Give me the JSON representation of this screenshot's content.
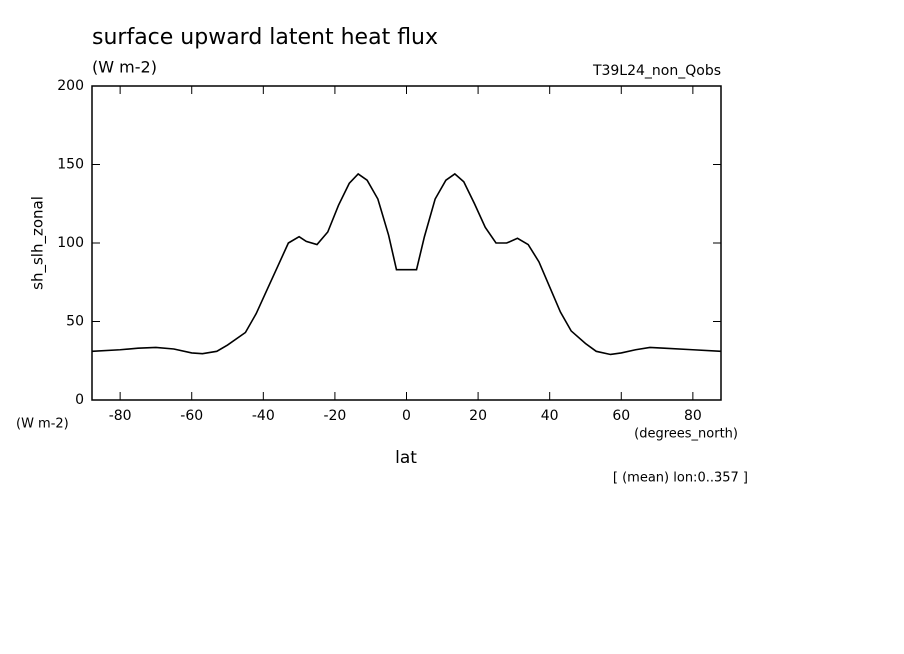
{
  "chart_data": {
    "type": "line",
    "title": "surface upward latent heat flux",
    "subtitle": "(W m-2)",
    "experiment": "T39L24_non_Qobs",
    "y_label": "sh_slh_zonal",
    "y_unit_label": "(W m-2)",
    "x_label": "lat",
    "x_unit_label": "(degrees_north)",
    "note": "[ (mean) lon:0..357 ]",
    "color": "#000000",
    "xlim": [
      -87.86,
      87.86
    ],
    "ylim": [
      0,
      200
    ],
    "xticks": [
      -80,
      -60,
      -40,
      -20,
      0,
      20,
      40,
      60,
      80
    ],
    "yticks": [
      0,
      50,
      100,
      150,
      200
    ],
    "x": [
      -87.86,
      -80,
      -75,
      -70,
      -65,
      -60,
      -57,
      -53,
      -50,
      -45,
      -42,
      -39,
      -36,
      -33,
      -30,
      -28,
      -25,
      -22,
      -19,
      -16,
      -13.5,
      -11,
      -8,
      -5,
      -2.8,
      2.8,
      5,
      8,
      11,
      13.5,
      16,
      19,
      22,
      25,
      28,
      31,
      34,
      37,
      40,
      43,
      46,
      50,
      53,
      57,
      60,
      64,
      68,
      72,
      80,
      87.86
    ],
    "values": [
      31,
      32,
      33,
      33.5,
      32.5,
      30,
      29.5,
      31,
      35,
      43,
      55,
      70,
      85,
      100,
      104,
      101,
      99,
      107,
      124,
      138,
      144,
      140,
      128,
      105,
      83,
      83,
      104,
      128,
      140,
      144,
      139,
      125,
      110,
      100,
      100,
      103,
      99,
      88,
      72,
      56,
      44,
      36,
      31,
      29,
      30,
      32,
      33.5,
      33,
      32,
      31
    ]
  }
}
